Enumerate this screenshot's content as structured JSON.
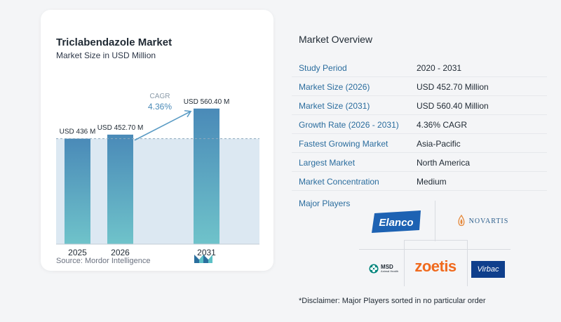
{
  "chart": {
    "title": "Triclabendazole Market",
    "subtitle": "Market Size in USD Million",
    "source": "Source:  Mordor Intelligence",
    "cagr_label": "CAGR",
    "cagr_value": "4.36%"
  },
  "chart_data": {
    "type": "bar",
    "categories": [
      "2025",
      "2026",
      "2031"
    ],
    "values": [
      436,
      452.7,
      560.4
    ],
    "data_labels": [
      "USD 436 M",
      "USD 452.70 M",
      "USD 560.40 M"
    ],
    "ylim": [
      0,
      580
    ],
    "colors": {
      "bar_top": "#4a8ab8",
      "bar_bottom": "#6fc3ca",
      "band": "#dce8f2",
      "baseline": "#8fa9bd"
    }
  },
  "overview": {
    "title": "Market Overview",
    "rows": [
      {
        "key": "Study Period",
        "value": "2020 - 2031"
      },
      {
        "key": "Market Size (2026)",
        "value": "USD 452.70 Million"
      },
      {
        "key": "Market Size (2031)",
        "value": "USD 560.40 Million"
      },
      {
        "key": "Growth Rate (2026 - 2031)",
        "value": "4.36% CAGR"
      },
      {
        "key": "Fastest Growing Market",
        "value": "Asia-Pacific"
      },
      {
        "key": "Largest Market",
        "value": "North America"
      },
      {
        "key": "Market Concentration",
        "value": "Medium"
      }
    ],
    "players_title": "Major Players",
    "players": {
      "elanco": "Elanco",
      "novartis": "NOVARTIS",
      "msd": "MSD",
      "msd_sub": "Animal Health",
      "zoetis": "zoetis",
      "virbac": "Virbac"
    },
    "disclaimer": "*Disclaimer: Major Players sorted in no particular order"
  }
}
